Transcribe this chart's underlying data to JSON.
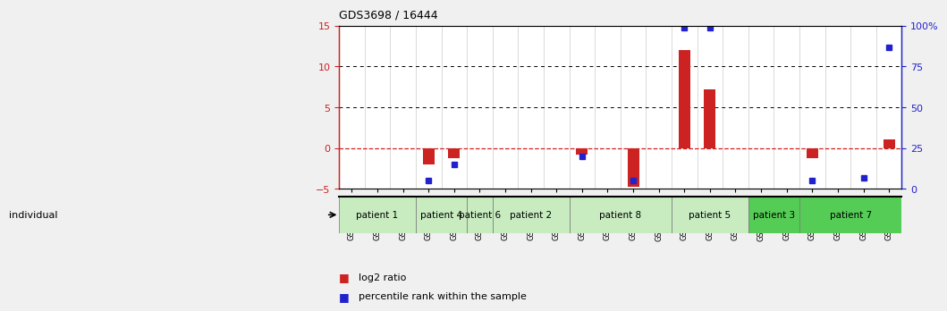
{
  "title": "GDS3698 / 16444",
  "samples": [
    "GSM279949",
    "GSM279950",
    "GSM279951",
    "GSM279952",
    "GSM279953",
    "GSM279954",
    "GSM279955",
    "GSM279956",
    "GSM279957",
    "GSM279959",
    "GSM279960",
    "GSM279962",
    "GSM279967",
    "GSM279970",
    "GSM279991",
    "GSM279992",
    "GSM279976",
    "GSM279982",
    "GSM280011",
    "GSM280014",
    "GSM280015",
    "GSM280016"
  ],
  "log2_ratio": [
    0,
    0,
    0,
    -2.0,
    -1.3,
    0,
    0,
    0,
    0,
    -0.8,
    0,
    -4.8,
    0,
    12.0,
    7.2,
    0,
    0,
    0,
    -1.2,
    0,
    0,
    1.0
  ],
  "percentile_pct": [
    null,
    null,
    null,
    5,
    15,
    null,
    null,
    null,
    null,
    20,
    null,
    5,
    null,
    99,
    99,
    null,
    null,
    null,
    5,
    null,
    6.5,
    87
  ],
  "patients": [
    {
      "label": "patient 1",
      "start": 0,
      "end": 3,
      "color": "#c8ecc0"
    },
    {
      "label": "patient 4",
      "start": 3,
      "end": 5,
      "color": "#c8ecc0"
    },
    {
      "label": "patient 6",
      "start": 5,
      "end": 6,
      "color": "#c8ecc0"
    },
    {
      "label": "patient 2",
      "start": 6,
      "end": 9,
      "color": "#c8ecc0"
    },
    {
      "label": "patient 8",
      "start": 9,
      "end": 13,
      "color": "#c8ecc0"
    },
    {
      "label": "patient 5",
      "start": 13,
      "end": 16,
      "color": "#c8ecc0"
    },
    {
      "label": "patient 3",
      "start": 16,
      "end": 18,
      "color": "#55cc55"
    },
    {
      "label": "patient 7",
      "start": 18,
      "end": 22,
      "color": "#55cc55"
    }
  ],
  "ylim_left": [
    -5,
    15
  ],
  "ylim_right": [
    0,
    100
  ],
  "bar_color": "#cc2222",
  "dot_color": "#2222cc",
  "zero_line_color": "#cc2222",
  "bg_color": "#e8e8e8"
}
